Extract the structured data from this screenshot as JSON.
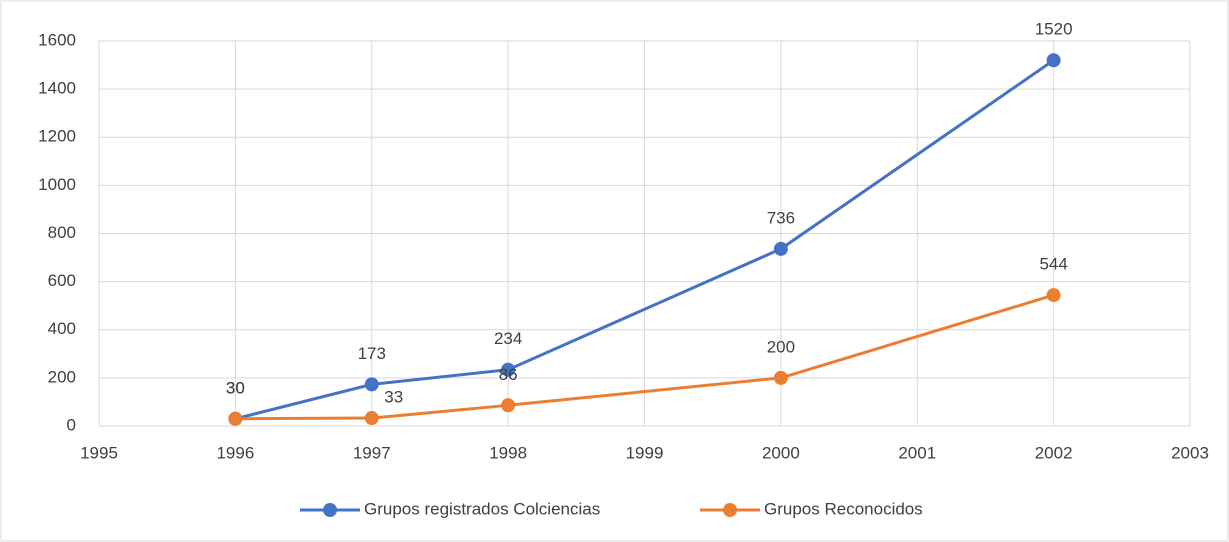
{
  "chart_data": {
    "type": "line",
    "x": [
      1996,
      1997,
      1998,
      2000,
      2002
    ],
    "series": [
      {
        "name": "Grupos registrados Colciencias",
        "color": "#4472c4",
        "values": [
          30,
          173,
          234,
          736,
          1520
        ]
      },
      {
        "name": "Grupos Reconocidos",
        "color": "#ed7d31",
        "values": [
          30,
          33,
          86,
          200,
          544
        ]
      }
    ],
    "xlim": [
      1995,
      2003
    ],
    "xticks": [
      1995,
      1996,
      1997,
      1998,
      1999,
      2000,
      2001,
      2002,
      2003
    ],
    "ylim": [
      0,
      1600
    ],
    "yticks": [
      0,
      200,
      400,
      600,
      800,
      1000,
      1200,
      1400,
      1600
    ],
    "grid": true,
    "legend": "bottom"
  }
}
